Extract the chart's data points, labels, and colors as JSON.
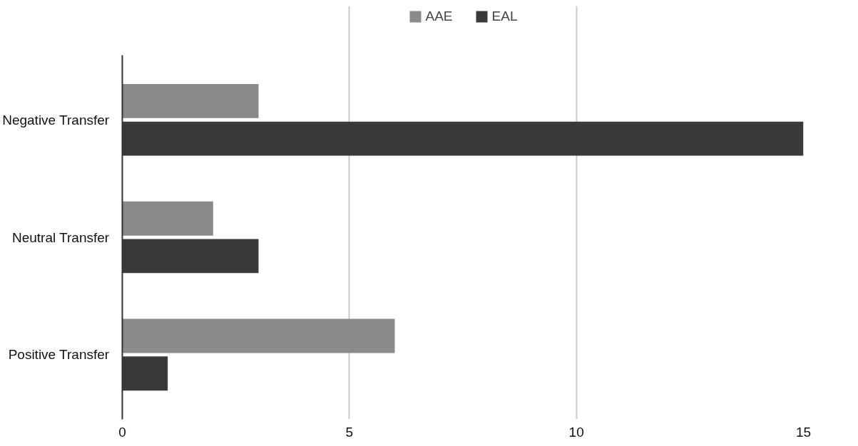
{
  "chart_data": {
    "type": "bar",
    "orientation": "horizontal",
    "categories": [
      "Negative Transfer",
      "Neutral Transfer",
      "Positive Transfer"
    ],
    "series": [
      {
        "name": "AAE",
        "color": "#8a8a8a",
        "values": [
          3,
          2,
          6
        ]
      },
      {
        "name": "EAL",
        "color": "#3a3a3a",
        "values": [
          15,
          3,
          1
        ]
      }
    ],
    "xlim": [
      0,
      15
    ],
    "xticks": [
      0,
      5,
      10,
      15
    ],
    "grid": "x",
    "legend": "top"
  }
}
